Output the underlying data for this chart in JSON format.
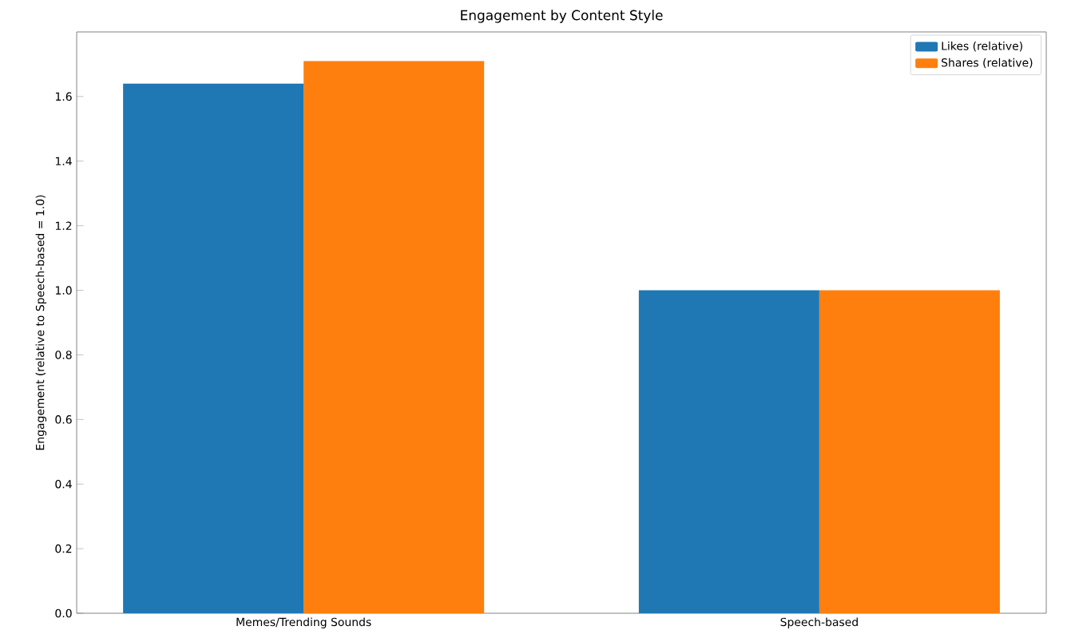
{
  "chart_data": {
    "type": "bar",
    "title": "Engagement by Content Style",
    "ylabel": "Engagement (relative to Speech-based = 1.0)",
    "categories": [
      "Memes/Trending Sounds",
      "Speech-based"
    ],
    "series": [
      {
        "name": "Likes (relative)",
        "color": "#1f77b4",
        "values": [
          1.64,
          1.0
        ]
      },
      {
        "name": "Shares (relative)",
        "color": "#ff7f0e",
        "values": [
          1.71,
          1.0
        ]
      }
    ],
    "ylim": [
      0,
      1.8
    ],
    "yticks": [
      {
        "value": 0,
        "label": "0.0"
      },
      {
        "value": 0.2,
        "label": "0.2"
      },
      {
        "value": 0.4,
        "label": "0.4"
      },
      {
        "value": 0.6,
        "label": "0.6"
      },
      {
        "value": 0.8,
        "label": "0.8"
      },
      {
        "value": 1.0,
        "label": "1.0"
      },
      {
        "value": 1.2,
        "label": "1.2"
      },
      {
        "value": 1.4,
        "label": "1.4"
      },
      {
        "value": 1.6,
        "label": "1.6"
      }
    ],
    "legend": "top right"
  }
}
